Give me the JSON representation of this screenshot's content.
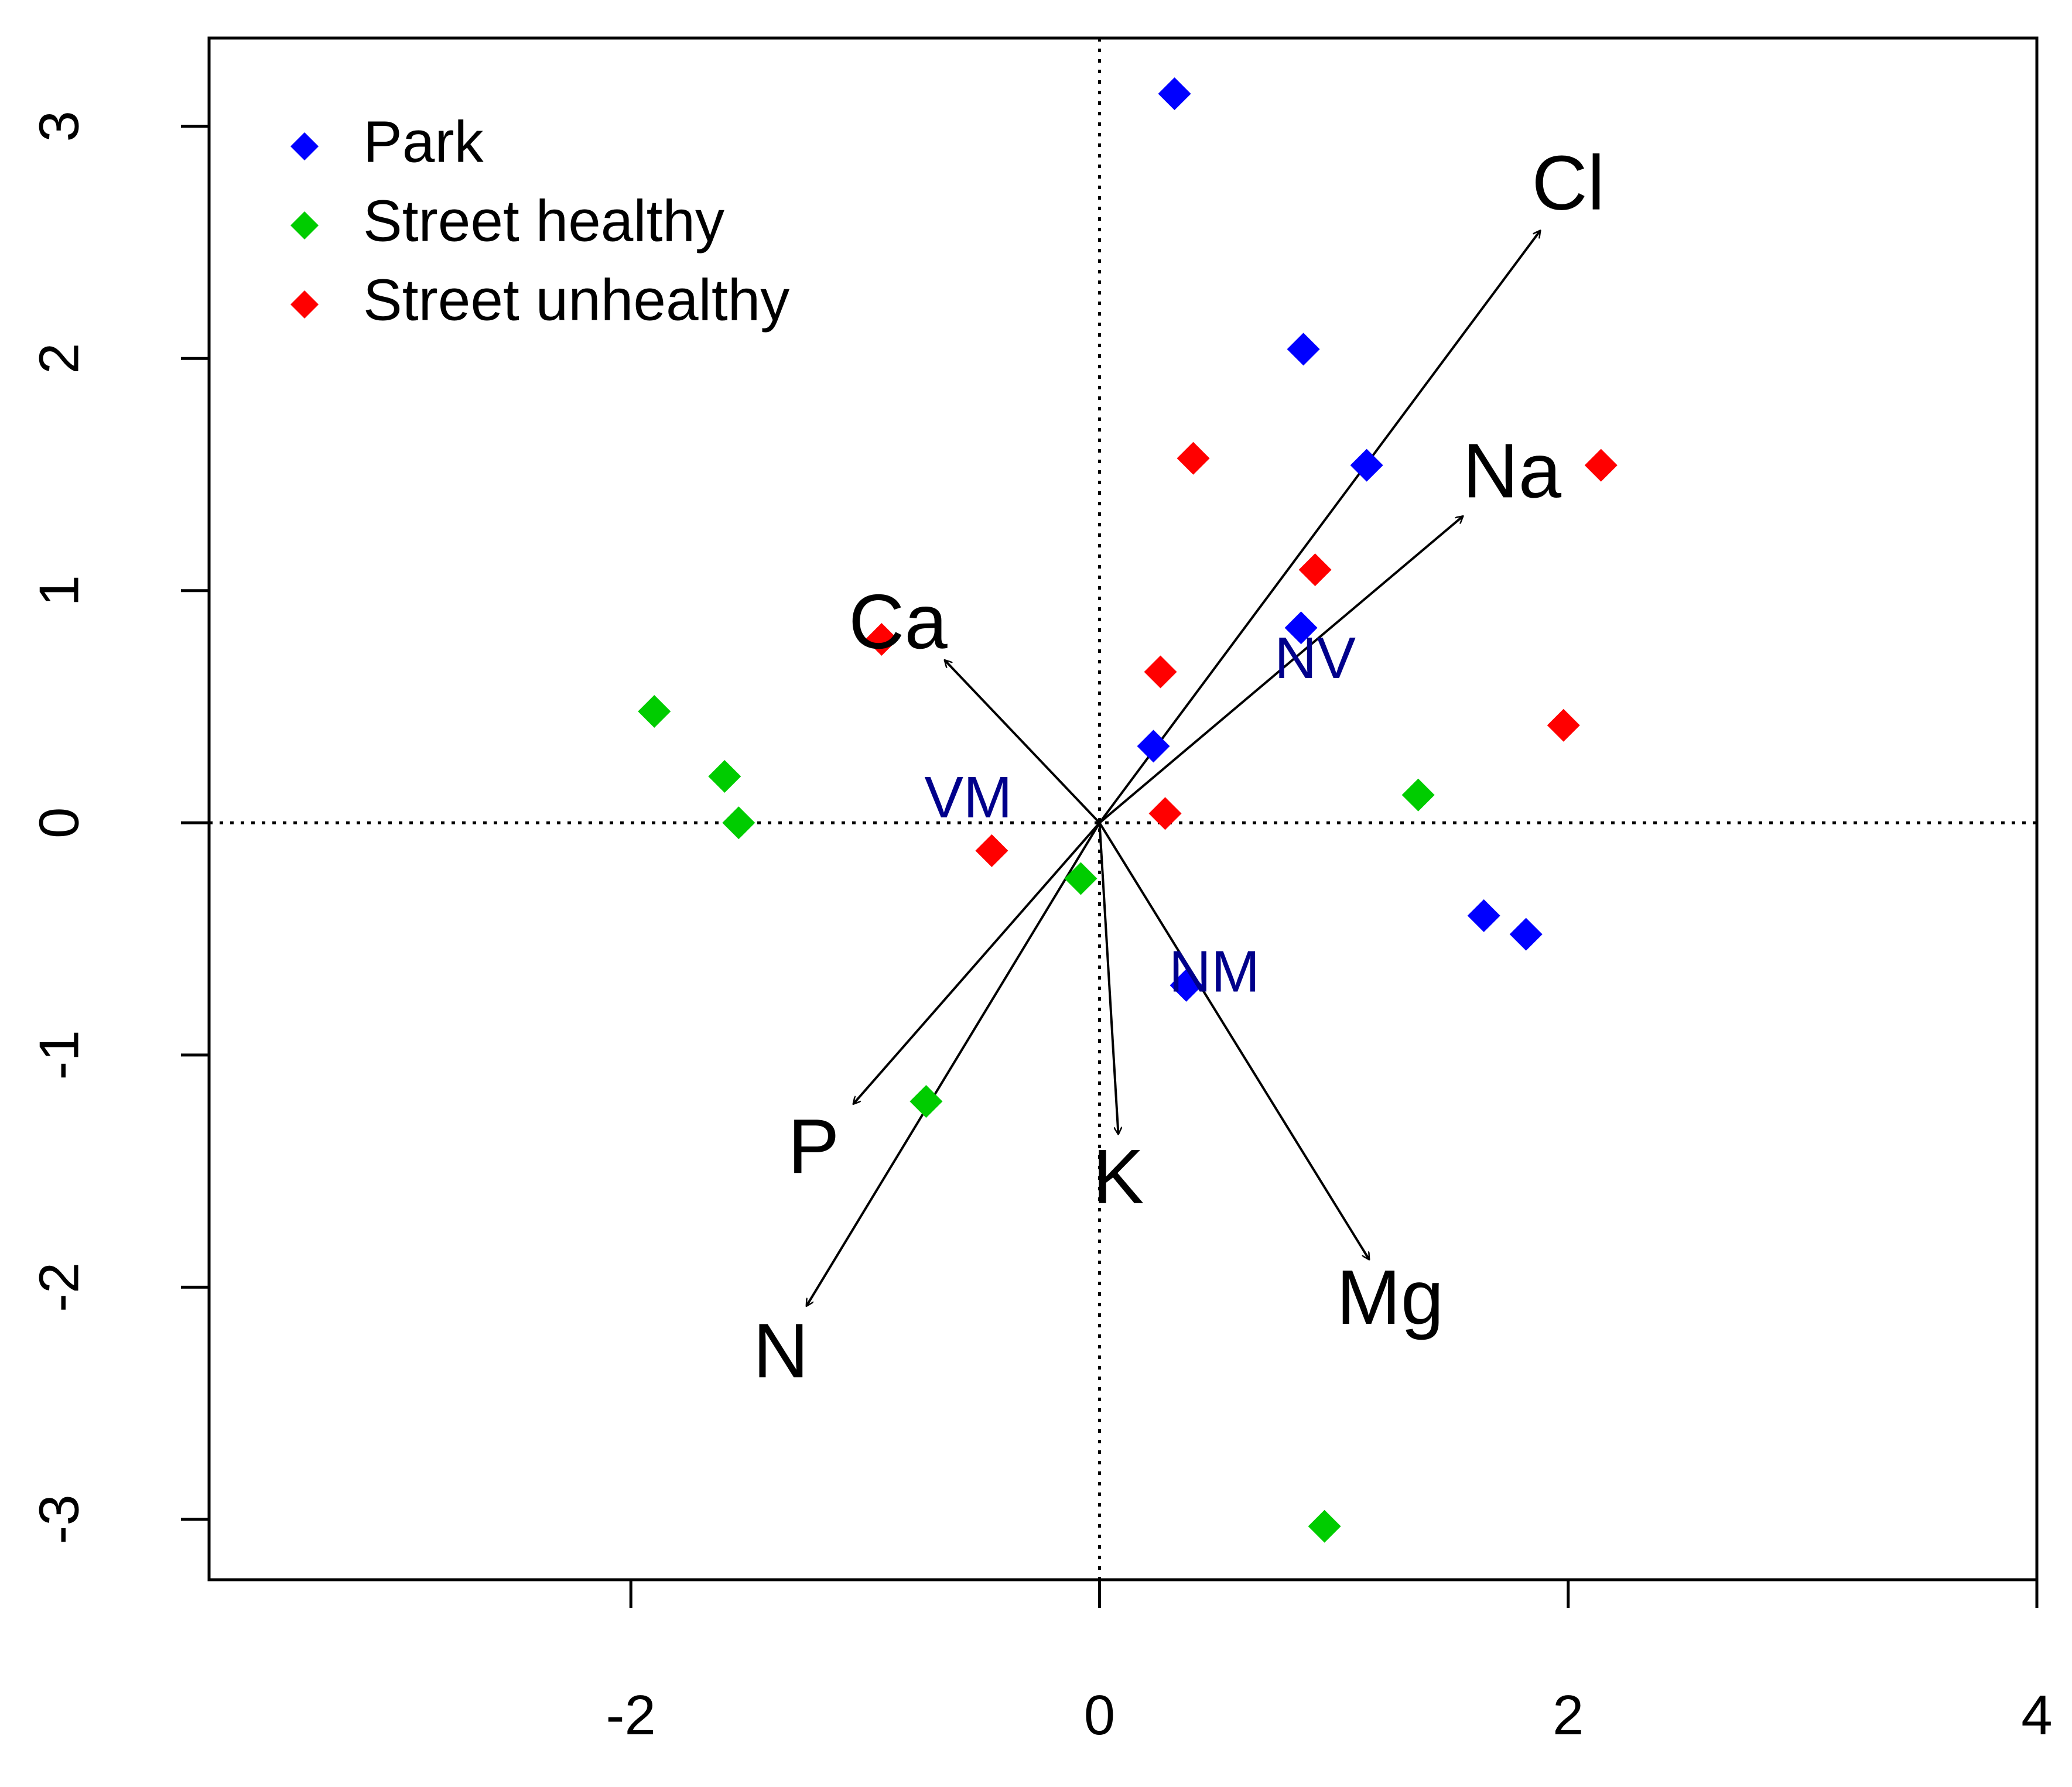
{
  "chart_data": {
    "type": "scatter",
    "title": "",
    "xlabel": "",
    "ylabel": "",
    "xlim": [
      -3.8,
      4.0
    ],
    "ylim": [
      -3.26,
      3.38
    ],
    "x_ticks": [
      -2,
      0,
      2,
      4
    ],
    "x_tick_labels": [
      "-2",
      "0",
      "2",
      "4"
    ],
    "y_ticks": [
      -3,
      -2,
      -1,
      0,
      1,
      2,
      3
    ],
    "y_tick_labels": [
      "-3",
      "-2",
      "-1",
      "0",
      "1",
      "2",
      "3"
    ],
    "grid": false,
    "legend_position": "top-left",
    "series": [
      {
        "name": "Park",
        "color": "#0000ff",
        "marker": "diamond",
        "points": [
          {
            "x": 0.32,
            "y": 3.14
          },
          {
            "x": 0.87,
            "y": 2.04
          },
          {
            "x": 1.14,
            "y": 1.54
          },
          {
            "x": 0.86,
            "y": 0.84
          },
          {
            "x": 0.23,
            "y": 0.33
          },
          {
            "x": 0.37,
            "y": -0.7
          },
          {
            "x": 1.64,
            "y": -0.4
          },
          {
            "x": 1.82,
            "y": -0.48
          }
        ]
      },
      {
        "name": "Street healthy",
        "color": "#00cc00",
        "marker": "diamond",
        "points": [
          {
            "x": -1.9,
            "y": 0.48
          },
          {
            "x": -1.6,
            "y": 0.2
          },
          {
            "x": -1.54,
            "y": 0.0
          },
          {
            "x": -0.08,
            "y": -0.24
          },
          {
            "x": -0.74,
            "y": -1.2
          },
          {
            "x": 1.36,
            "y": 0.12
          },
          {
            "x": 0.96,
            "y": -3.03
          }
        ]
      },
      {
        "name": "Street unhealthy",
        "color": "#ff0000",
        "marker": "diamond",
        "points": [
          {
            "x": 0.4,
            "y": 1.57
          },
          {
            "x": 2.14,
            "y": 1.54
          },
          {
            "x": 0.92,
            "y": 1.09
          },
          {
            "x": -0.93,
            "y": 0.79
          },
          {
            "x": 0.26,
            "y": 0.65
          },
          {
            "x": 1.98,
            "y": 0.42
          },
          {
            "x": 0.28,
            "y": 0.04
          },
          {
            "x": -0.46,
            "y": -0.12
          }
        ]
      }
    ],
    "vectors": [
      {
        "name": "Cl",
        "x": 1.88,
        "y": 2.55,
        "label_x": 2.0,
        "label_y": 2.73
      },
      {
        "name": "Na",
        "x": 1.55,
        "y": 1.32,
        "label_x": 1.76,
        "label_y": 1.49
      },
      {
        "name": "Ca",
        "x": -0.66,
        "y": 0.7,
        "label_x": -0.86,
        "label_y": 0.84
      },
      {
        "name": "P",
        "x": -1.05,
        "y": -1.21,
        "label_x": -1.22,
        "label_y": -1.42
      },
      {
        "name": "N",
        "x": -1.25,
        "y": -2.08,
        "label_x": -1.36,
        "label_y": -2.3
      },
      {
        "name": "K",
        "x": 0.08,
        "y": -1.34,
        "label_x": 0.08,
        "label_y": -1.55
      },
      {
        "name": "Mg",
        "x": 1.15,
        "y": -1.88,
        "label_x": 1.24,
        "label_y": -2.07
      }
    ],
    "site_labels": [
      {
        "name": "NV",
        "x": 0.92,
        "y": 0.69
      },
      {
        "name": "VM",
        "x": -0.56,
        "y": 0.09
      },
      {
        "name": "NM",
        "x": 0.49,
        "y": -0.66
      }
    ],
    "site_label_color": "#00008b",
    "reference_lines": {
      "x": 0,
      "y": 0,
      "style": "dotted"
    }
  }
}
